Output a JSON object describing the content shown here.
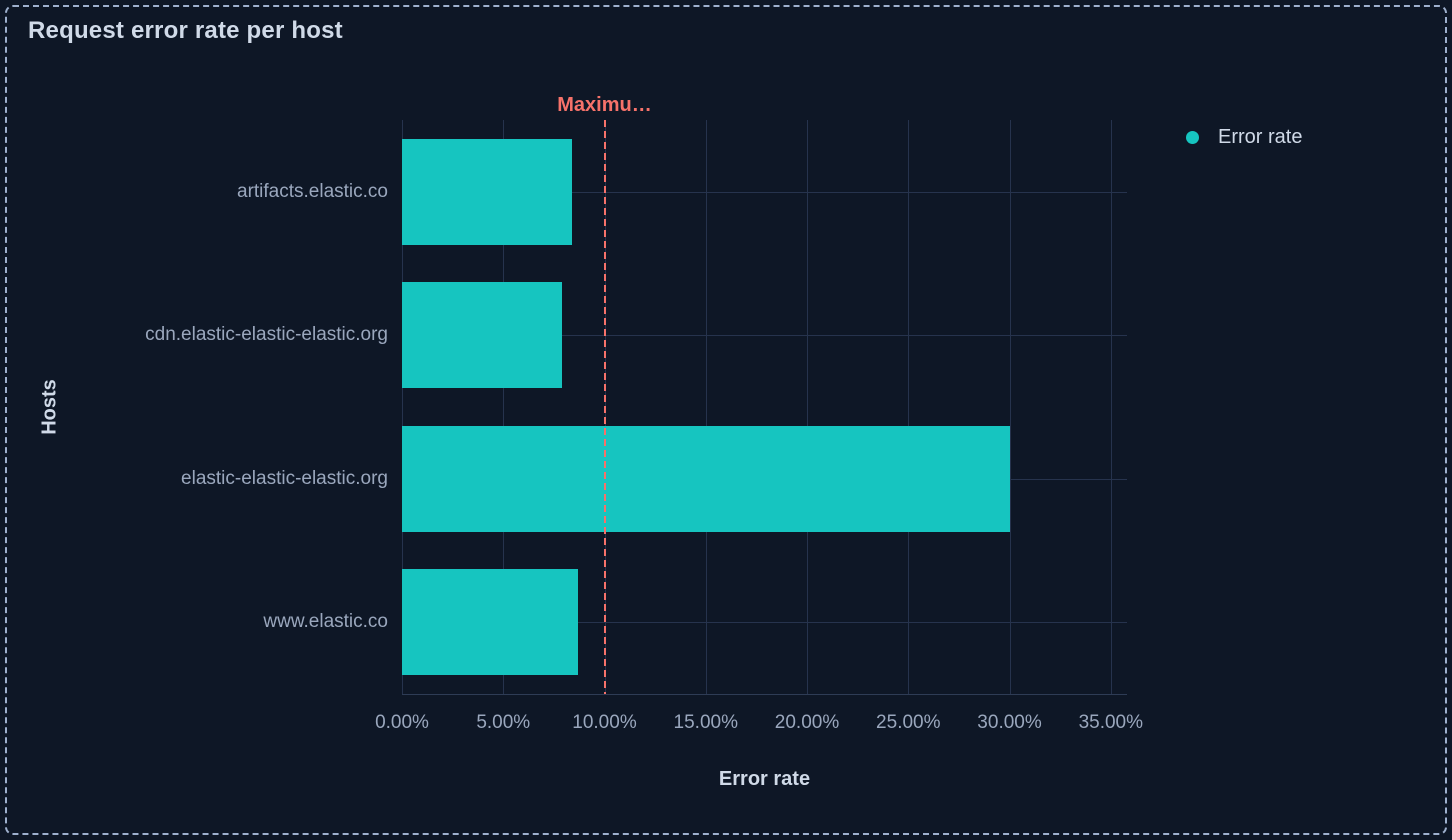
{
  "panel": {
    "title": "Request error rate per host"
  },
  "legend": {
    "items": [
      {
        "label": "Error rate",
        "color": "#16c5c0"
      }
    ]
  },
  "colors": {
    "background": "#0e1726",
    "panel_border": "#9eb0cd",
    "bar": "#16c5c0",
    "annotation": "#f6726a",
    "text_bright": "#d0dae8",
    "text_muted": "#9aa7bd",
    "gridline": "#26334d",
    "axis_line": "#2e3c55"
  },
  "chart_data": {
    "type": "bar",
    "orientation": "horizontal",
    "title": "Request error rate per host",
    "categories": [
      "artifacts.elastic.co",
      "cdn.elastic-elastic-elastic.org",
      "elastic-elastic-elastic.org",
      "www.elastic.co"
    ],
    "series": [
      {
        "name": "Error rate",
        "color": "#16c5c0",
        "values": [
          8.4,
          7.9,
          30,
          8.7
        ]
      }
    ],
    "value_unit": "%",
    "xlabel": "Error rate",
    "ylabel": "Hosts",
    "xlim": [
      0,
      35.8
    ],
    "x_ticks": [
      0,
      5,
      10,
      15,
      20,
      25,
      30,
      35
    ],
    "x_tick_labels": [
      "0.00%",
      "5.00%",
      "10.00%",
      "15.00%",
      "20.00%",
      "25.00%",
      "30.00%",
      "35.00%"
    ],
    "grid": true,
    "legend_position": "right",
    "annotation": {
      "label": "Maximu…",
      "value": 10,
      "line_style": "dashed",
      "color": "#f6726a"
    }
  }
}
